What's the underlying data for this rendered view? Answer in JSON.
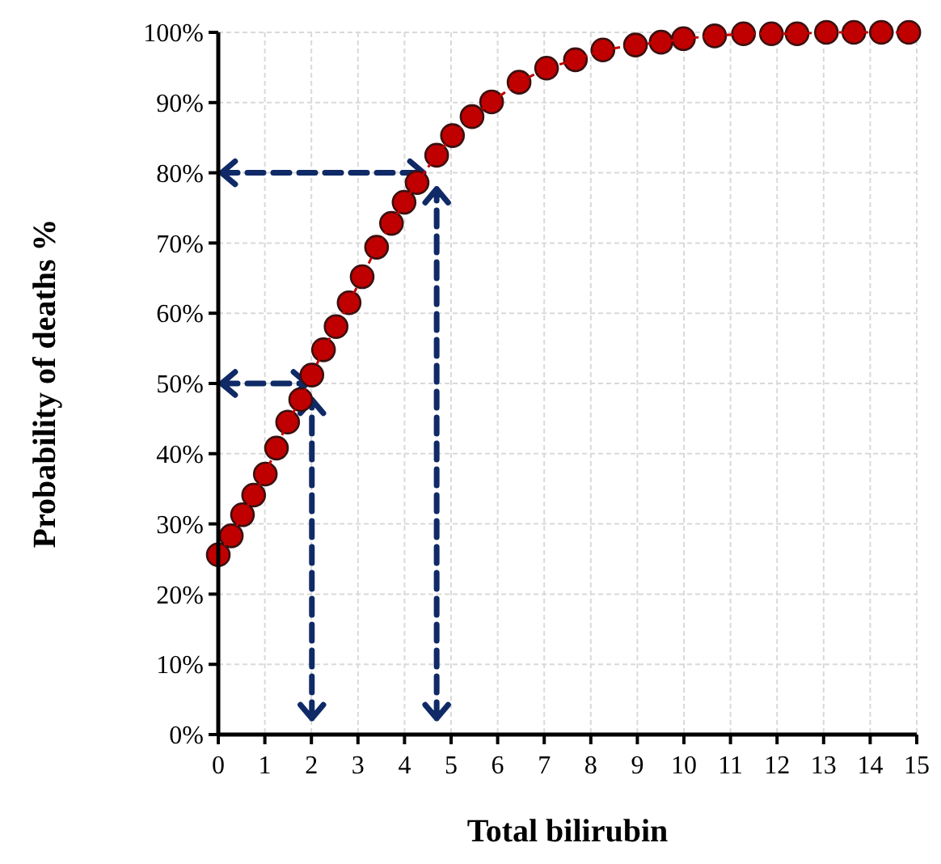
{
  "chart_data": {
    "type": "line",
    "xlabel": "Total bilirubin",
    "ylabel": "Probability of deaths %",
    "xlim": [
      0,
      15
    ],
    "xticks": [
      0,
      1,
      2,
      3,
      4,
      5,
      6,
      7,
      8,
      9,
      10,
      11,
      12,
      13,
      14,
      15
    ],
    "ylim": [
      0,
      100
    ],
    "yticks": [
      {
        "value": 0,
        "label": "0%"
      },
      {
        "value": 10,
        "label": "10%"
      },
      {
        "value": 20,
        "label": "20%"
      },
      {
        "value": 30,
        "label": "30%"
      },
      {
        "value": 40,
        "label": "40%"
      },
      {
        "value": 50,
        "label": "50%"
      },
      {
        "value": 60,
        "label": "60%"
      },
      {
        "value": 70,
        "label": "70%"
      },
      {
        "value": 80,
        "label": "80%"
      },
      {
        "value": 90,
        "label": "90%"
      },
      {
        "value": 100,
        "label": "100%"
      }
    ],
    "grid": true,
    "marker": "circle",
    "line_style": "dashed",
    "series": [
      {
        "color": "#c00000",
        "x": [
          0,
          0.28,
          0.52,
          0.76,
          1.01,
          1.25,
          1.49,
          1.77,
          2.01,
          2.26,
          2.53,
          2.81,
          3.09,
          3.4,
          3.72,
          3.99,
          4.27,
          4.69,
          5.03,
          5.45,
          5.87,
          6.46,
          7.05,
          7.67,
          8.26,
          8.96,
          9.51,
          9.99,
          10.66,
          11.28,
          11.88,
          12.43,
          13.06,
          13.65,
          14.24,
          14.83
        ],
        "values": [
          25.6,
          28.3,
          31.3,
          34.1,
          37.1,
          40.8,
          44.5,
          47.7,
          51.2,
          54.8,
          58.1,
          61.5,
          65.2,
          69.4,
          72.8,
          75.8,
          78.6,
          82.5,
          85.3,
          88.0,
          90.1,
          92.9,
          94.9,
          96.1,
          97.5,
          98.2,
          98.6,
          99.1,
          99.5,
          99.8,
          99.8,
          99.8,
          100,
          100,
          100,
          100
        ]
      }
    ]
  }
}
